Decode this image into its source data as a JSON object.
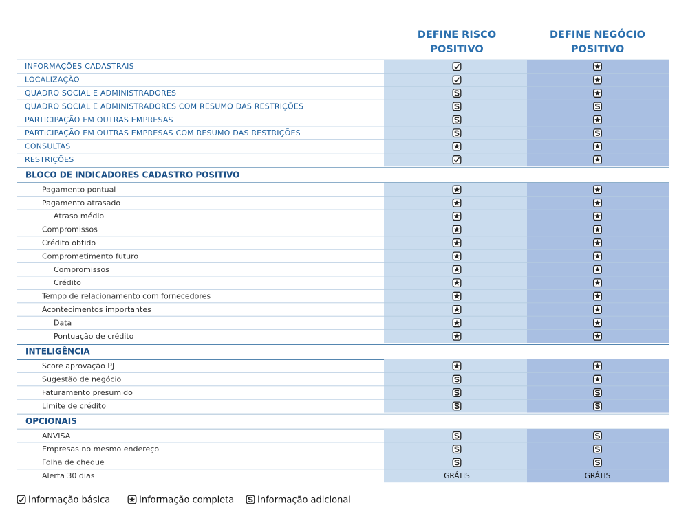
{
  "header": {
    "columns": [
      "DEFINE RISCO\nPOSITIVO",
      "DEFINE NEGÓCIO\nPOSITIVO"
    ]
  },
  "sections": [
    {
      "rows": [
        {
          "label": "INFORMAÇÕES CADASTRAIS",
          "level": 0,
          "cells": [
            {
              "icon": 0
            },
            {
              "icon": 1
            }
          ]
        },
        {
          "label": "LOCALIZAÇÃO",
          "level": 0,
          "cells": [
            {
              "icon": 0
            },
            {
              "icon": 1
            }
          ]
        },
        {
          "label": "QUADRO SOCIAL E ADMINISTRADORES",
          "level": 0,
          "cells": [
            {
              "icon": 2
            },
            {
              "icon": 1
            }
          ]
        },
        {
          "label": "QUADRO SOCIAL E ADMINISTRADORES COM RESUMO DAS RESTRIÇÕES",
          "level": 0,
          "cells": [
            {
              "icon": 2
            },
            {
              "icon": 2
            }
          ]
        },
        {
          "label": "PARTICIPAÇÃO EM OUTRAS EMPRESAS",
          "level": 0,
          "cells": [
            {
              "icon": 2
            },
            {
              "icon": 1
            }
          ]
        },
        {
          "label": "PARTICIPAÇÃO EM OUTRAS EMPRESAS COM RESUMO DAS RESTRIÇÕES",
          "level": 0,
          "cells": [
            {
              "icon": 2
            },
            {
              "icon": 2
            }
          ]
        },
        {
          "label": "CONSULTAS",
          "level": 0,
          "cells": [
            {
              "icon": 1
            },
            {
              "icon": 1
            }
          ]
        },
        {
          "label": "RESTRIÇÕES",
          "level": 0,
          "cells": [
            {
              "icon": 0
            },
            {
              "icon": 1
            }
          ]
        }
      ]
    },
    {
      "title": "BLOCO DE INDICADORES CADASTRO POSITIVO",
      "rows": [
        {
          "label": "Pagamento pontual",
          "level": 1,
          "cells": [
            {
              "icon": 1
            },
            {
              "icon": 1
            }
          ]
        },
        {
          "label": "Pagamento atrasado",
          "level": 1,
          "cells": [
            {
              "icon": 1
            },
            {
              "icon": 1
            }
          ]
        },
        {
          "label": "Atraso médio",
          "level": 2,
          "cells": [
            {
              "icon": 1
            },
            {
              "icon": 1
            }
          ]
        },
        {
          "label": "Compromissos",
          "level": 1,
          "cells": [
            {
              "icon": 1
            },
            {
              "icon": 1
            }
          ]
        },
        {
          "label": "Crédito obtido",
          "level": 1,
          "cells": [
            {
              "icon": 1
            },
            {
              "icon": 1
            }
          ]
        },
        {
          "label": "Comprometimento futuro",
          "level": 1,
          "cells": [
            {
              "icon": 1
            },
            {
              "icon": 1
            }
          ]
        },
        {
          "label": "Compromissos",
          "level": 2,
          "cells": [
            {
              "icon": 1
            },
            {
              "icon": 1
            }
          ]
        },
        {
          "label": "Crédito",
          "level": 2,
          "cells": [
            {
              "icon": 1
            },
            {
              "icon": 1
            }
          ]
        },
        {
          "label": "Tempo de relacionamento com fornecedores",
          "level": 1,
          "cells": [
            {
              "icon": 1
            },
            {
              "icon": 1
            }
          ]
        },
        {
          "label": "Acontecimentos importantes",
          "level": 1,
          "cells": [
            {
              "icon": 1
            },
            {
              "icon": 1
            }
          ]
        },
        {
          "label": "Data",
          "level": 2,
          "cells": [
            {
              "icon": 1
            },
            {
              "icon": 1
            }
          ]
        },
        {
          "label": "Pontuação de crédito",
          "level": 2,
          "cells": [
            {
              "icon": 1
            },
            {
              "icon": 1
            }
          ]
        }
      ]
    },
    {
      "title": "INTELIGÊNCIA",
      "rows": [
        {
          "label": "Score aprovação PJ",
          "level": 1,
          "cells": [
            {
              "icon": 1
            },
            {
              "icon": 1
            }
          ]
        },
        {
          "label": "Sugestão de negócio",
          "level": 1,
          "cells": [
            {
              "icon": 2
            },
            {
              "icon": 1
            }
          ]
        },
        {
          "label": "Faturamento presumido",
          "level": 1,
          "cells": [
            {
              "icon": 2
            },
            {
              "icon": 2
            }
          ]
        },
        {
          "label": "Limite de crédito",
          "level": 1,
          "cells": [
            {
              "icon": 2
            },
            {
              "icon": 2
            }
          ]
        }
      ]
    },
    {
      "title": "OPCIONAIS",
      "rows": [
        {
          "label": "ANVISA",
          "level": 1,
          "cells": [
            {
              "icon": 2
            },
            {
              "icon": 2
            }
          ]
        },
        {
          "label": "Empresas no mesmo endereço",
          "level": 1,
          "cells": [
            {
              "icon": 2
            },
            {
              "icon": 2
            }
          ]
        },
        {
          "label": "Folha de cheque",
          "level": 1,
          "cells": [
            {
              "icon": 2
            },
            {
              "icon": 2
            }
          ]
        },
        {
          "label": "Alerta 30 dias",
          "level": 1,
          "cells": [
            "GRÁTIS",
            "GRÁTIS"
          ]
        }
      ]
    }
  ],
  "legend": [
    "Informação básica",
    "Informação completa",
    "Informação adicional"
  ]
}
